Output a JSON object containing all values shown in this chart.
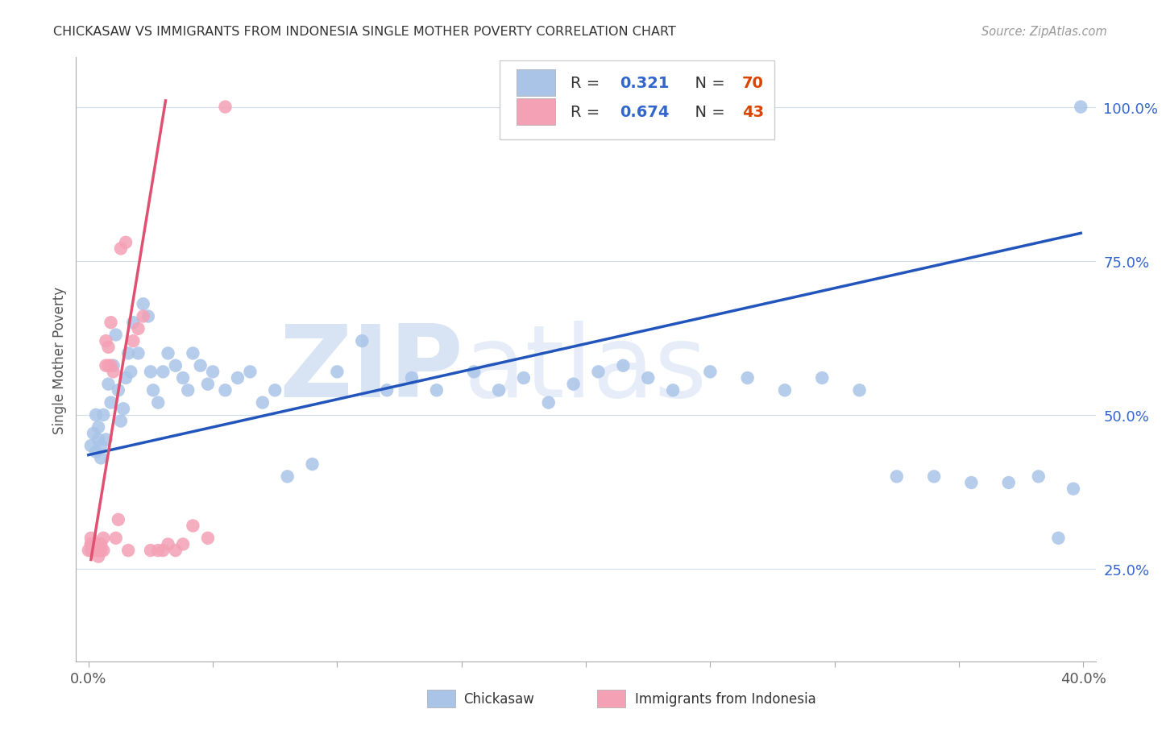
{
  "title": "CHICKASAW VS IMMIGRANTS FROM INDONESIA SINGLE MOTHER POVERTY CORRELATION CHART",
  "source": "Source: ZipAtlas.com",
  "ylabel_label": "Single Mother Poverty",
  "chickasaw_R": 0.321,
  "chickasaw_N": 70,
  "indonesia_R": 0.674,
  "indonesia_N": 43,
  "blue_color": "#aac4e8",
  "blue_line_color": "#2255bb",
  "pink_color": "#f4a0b5",
  "pink_line_color": "#e05070",
  "watermark_color": "#c8d8f0",
  "blue_label_color": "#3366cc",
  "orange_label_color": "#dd4400",
  "chickasaw_x": [
    0.001,
    0.002,
    0.003,
    0.003,
    0.004,
    0.004,
    0.005,
    0.005,
    0.006,
    0.007,
    0.008,
    0.009,
    0.01,
    0.011,
    0.012,
    0.013,
    0.014,
    0.015,
    0.016,
    0.017,
    0.018,
    0.02,
    0.022,
    0.024,
    0.025,
    0.026,
    0.028,
    0.03,
    0.032,
    0.035,
    0.038,
    0.04,
    0.042,
    0.045,
    0.048,
    0.05,
    0.055,
    0.06,
    0.065,
    0.07,
    0.075,
    0.08,
    0.09,
    0.1,
    0.11,
    0.12,
    0.13,
    0.14,
    0.155,
    0.165,
    0.175,
    0.185,
    0.195,
    0.205,
    0.215,
    0.225,
    0.235,
    0.25,
    0.265,
    0.28,
    0.295,
    0.31,
    0.325,
    0.34,
    0.355,
    0.37,
    0.382,
    0.39,
    0.396,
    0.399
  ],
  "chickasaw_y": [
    0.45,
    0.47,
    0.44,
    0.5,
    0.46,
    0.48,
    0.43,
    0.45,
    0.5,
    0.46,
    0.55,
    0.52,
    0.58,
    0.63,
    0.54,
    0.49,
    0.51,
    0.56,
    0.6,
    0.57,
    0.65,
    0.6,
    0.68,
    0.66,
    0.57,
    0.54,
    0.52,
    0.57,
    0.6,
    0.58,
    0.56,
    0.54,
    0.6,
    0.58,
    0.55,
    0.57,
    0.54,
    0.56,
    0.57,
    0.52,
    0.54,
    0.4,
    0.42,
    0.57,
    0.62,
    0.54,
    0.56,
    0.54,
    0.57,
    0.54,
    0.56,
    0.52,
    0.55,
    0.57,
    0.58,
    0.56,
    0.54,
    0.57,
    0.56,
    0.54,
    0.56,
    0.54,
    0.4,
    0.4,
    0.39,
    0.39,
    0.4,
    0.3,
    0.38,
    1.0
  ],
  "indonesia_x": [
    0.0,
    0.001,
    0.001,
    0.001,
    0.001,
    0.002,
    0.002,
    0.002,
    0.003,
    0.003,
    0.003,
    0.003,
    0.004,
    0.004,
    0.004,
    0.005,
    0.005,
    0.006,
    0.006,
    0.007,
    0.007,
    0.008,
    0.008,
    0.009,
    0.009,
    0.01,
    0.011,
    0.012,
    0.013,
    0.015,
    0.016,
    0.018,
    0.02,
    0.022,
    0.025,
    0.028,
    0.03,
    0.032,
    0.035,
    0.038,
    0.042,
    0.048,
    0.055
  ],
  "indonesia_y": [
    0.28,
    0.29,
    0.28,
    0.29,
    0.3,
    0.28,
    0.29,
    0.28,
    0.28,
    0.29,
    0.29,
    0.28,
    0.28,
    0.27,
    0.29,
    0.29,
    0.28,
    0.3,
    0.28,
    0.58,
    0.62,
    0.61,
    0.58,
    0.65,
    0.58,
    0.57,
    0.3,
    0.33,
    0.77,
    0.78,
    0.28,
    0.62,
    0.64,
    0.66,
    0.28,
    0.28,
    0.28,
    0.29,
    0.28,
    0.29,
    0.32,
    0.3,
    1.0
  ],
  "blue_line_x": [
    0.0,
    0.399
  ],
  "blue_line_y": [
    0.435,
    0.795
  ],
  "pink_line_x": [
    0.001,
    0.031
  ],
  "pink_line_y": [
    0.265,
    1.01
  ],
  "xlim": [
    -0.005,
    0.405
  ],
  "ylim": [
    0.1,
    1.08
  ],
  "xticks": [
    0.0,
    0.05,
    0.1,
    0.15,
    0.2,
    0.25,
    0.3,
    0.35,
    0.4
  ],
  "xlabels": [
    "0.0%",
    "",
    "",
    "",
    "",
    "",
    "",
    "",
    "40.0%"
  ],
  "yticks": [
    0.25,
    0.5,
    0.75,
    1.0
  ],
  "ylabels": [
    "25.0%",
    "50.0%",
    "75.0%",
    "100.0%"
  ]
}
